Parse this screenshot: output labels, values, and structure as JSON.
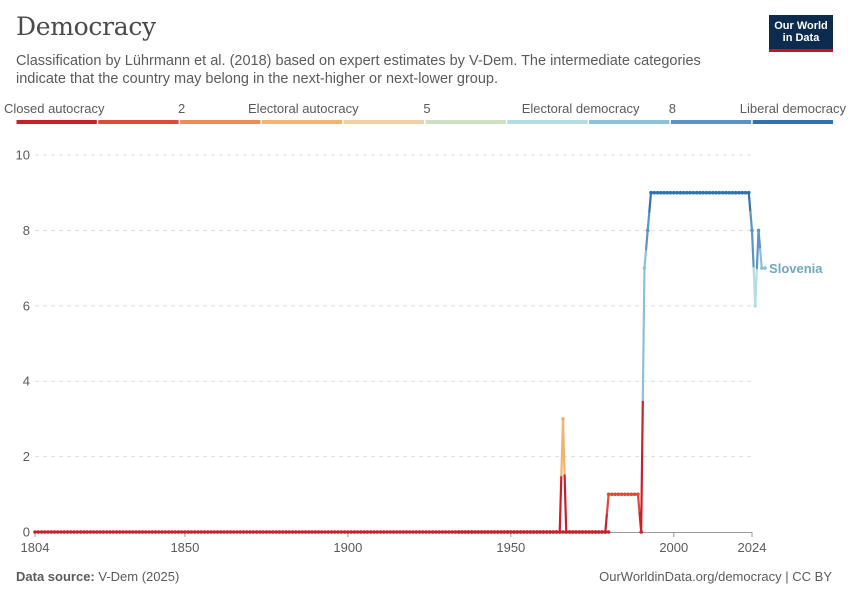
{
  "header": {
    "title": "Democracy",
    "subtitle": "Classification by Lührmann et al. (2018) based on expert estimates by V-Dem. The intermediate categories indicate that the country may belong in the next-higher or next-lower group.",
    "logo_line1": "Our World",
    "logo_line2": "in Data"
  },
  "footer": {
    "source_label": "Data source:",
    "source_value": "V-Dem (2025)",
    "url": "OurWorldinData.org/democracy | CC BY"
  },
  "colors": {
    "grid": "#dddddd",
    "axis": "#999999",
    "text": "#5b5b5b",
    "label": "#6fa8c8"
  },
  "chart_data": {
    "type": "line",
    "title": "Democracy",
    "xlabel": "",
    "ylabel": "",
    "xlim": [
      1804,
      2024
    ],
    "ylim": [
      0,
      10
    ],
    "x_ticks": [
      1804,
      1850,
      1900,
      1950,
      2000,
      2024
    ],
    "y_ticks": [
      0,
      2,
      4,
      6,
      8,
      10
    ],
    "gridlines": true,
    "legend": {
      "labels": [
        "Closed autocracy",
        "2",
        "Electoral autocracy",
        "5",
        "Electoral democracy",
        "8",
        "Liberal democracy"
      ],
      "bins": [
        {
          "from": 0,
          "to": 1,
          "color": "#c8202a"
        },
        {
          "from": 1,
          "to": 2,
          "color": "#dd4a3a"
        },
        {
          "from": 2,
          "to": 3,
          "color": "#ee8c56"
        },
        {
          "from": 3,
          "to": 4,
          "color": "#f2b36e"
        },
        {
          "from": 4,
          "to": 5,
          "color": "#efd0a4"
        },
        {
          "from": 5,
          "to": 6,
          "color": "#cfdfc1"
        },
        {
          "from": 6,
          "to": 7,
          "color": "#b3dce5"
        },
        {
          "from": 7,
          "to": 8,
          "color": "#8ec0da"
        },
        {
          "from": 8,
          "to": 9,
          "color": "#5995c3"
        },
        {
          "from": 9,
          "to": 10,
          "color": "#2f72ad"
        }
      ]
    },
    "series": [
      {
        "name": "Slovenia",
        "segments": [
          {
            "start": 1804,
            "values": [
              0,
              0,
              0,
              0,
              0,
              0,
              0,
              0,
              0,
              0,
              0,
              0,
              0,
              0,
              0,
              0,
              0,
              0,
              0,
              0,
              0,
              0,
              0,
              0,
              0,
              0,
              0,
              0,
              0,
              0,
              0,
              0,
              0,
              0,
              0,
              0,
              0,
              0,
              0,
              0,
              0,
              0,
              0,
              0,
              0,
              0,
              0,
              0,
              0,
              0,
              0,
              0,
              0,
              0,
              0,
              0,
              0,
              0,
              0,
              0,
              0,
              0,
              0,
              0,
              0,
              0,
              0,
              0,
              0,
              0,
              0,
              0,
              0,
              0,
              0,
              0,
              0,
              0,
              0,
              0,
              0,
              0,
              0,
              0,
              0,
              0,
              0,
              0,
              0,
              0,
              0,
              0,
              0,
              0,
              0,
              0,
              0,
              0,
              0,
              0,
              0,
              0,
              0,
              0,
              0,
              0,
              0,
              0,
              0,
              0,
              0,
              0,
              0,
              0,
              0,
              0,
              0,
              0,
              0,
              0,
              0,
              0,
              0,
              0,
              0,
              0,
              0,
              0,
              0,
              0,
              0,
              0,
              0,
              0,
              0,
              0,
              0,
              0,
              0,
              0,
              0,
              0,
              0,
              0,
              0,
              0,
              0,
              0,
              0,
              0,
              0,
              0,
              0,
              0,
              0,
              0,
              0,
              0,
              0,
              0,
              0,
              0,
              3,
              0,
              0,
              0,
              0,
              0,
              0,
              0,
              0,
              0,
              0,
              0,
              0,
              0,
              0
            ]
          },
          {
            "start": 1934,
            "values": [
              0,
              0,
              0,
              0,
              0,
              0,
              0,
              0,
              0,
              0,
              0,
              0,
              0,
              0,
              0,
              0,
              0,
              0,
              0,
              0,
              0,
              0,
              0,
              0,
              0,
              0,
              0,
              0,
              0,
              0,
              0,
              0,
              0,
              0,
              0,
              0,
              0,
              0,
              0,
              0,
              0,
              0,
              0,
              0,
              0,
              0,
              1,
              1,
              1,
              1,
              1,
              1,
              1,
              1,
              1,
              1,
              0,
              7,
              8,
              9,
              9,
              9,
              9,
              9,
              9,
              9,
              9,
              9,
              9,
              9,
              9,
              9,
              9,
              9,
              9,
              9,
              9,
              9,
              9,
              9,
              9,
              9,
              9,
              9,
              9,
              9,
              9,
              9,
              9,
              9,
              8,
              6,
              8,
              7,
              7
            ]
          }
        ]
      }
    ]
  }
}
